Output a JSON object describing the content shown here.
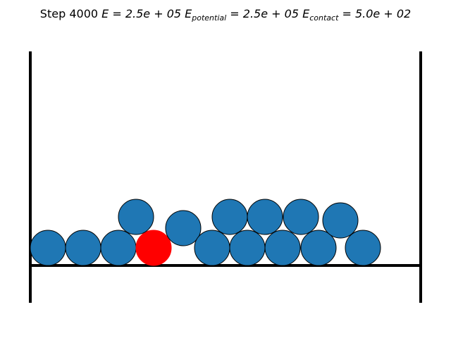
{
  "title": {
    "step_label": "Step",
    "step": "4000",
    "energy_symbol": "E",
    "energy_value": "2.5e + 05",
    "potential_symbol": "E",
    "potential_subscript": "potential",
    "potential_value": "2.5e + 05",
    "contact_symbol": "E",
    "contact_subscript": "contact",
    "contact_value": "5.0e + 02"
  },
  "colors": {
    "particle": "#1f77b4",
    "highlight": "#ff0000",
    "outline": "#000000",
    "wall": "#000000"
  },
  "particles": [
    {
      "highlight": false
    },
    {
      "highlight": false
    },
    {
      "highlight": false
    },
    {
      "highlight": true
    },
    {
      "highlight": false
    },
    {
      "highlight": false
    },
    {
      "highlight": false
    },
    {
      "highlight": false
    },
    {
      "highlight": false
    },
    {
      "highlight": false
    },
    {
      "highlight": false
    },
    {
      "highlight": false
    },
    {
      "highlight": false
    },
    {
      "highlight": false
    },
    {
      "highlight": false
    },
    {
      "highlight": false
    }
  ]
}
